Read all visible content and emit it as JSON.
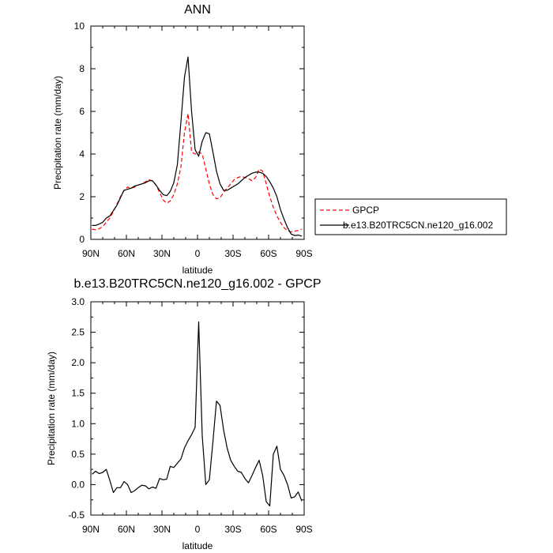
{
  "chart_data": [
    {
      "type": "line",
      "title": "ANN",
      "xlabel": "latitude",
      "ylabel": "Precipitation rate (mm/day)",
      "xlim": [
        90,
        -90
      ],
      "ylim": [
        0,
        10
      ],
      "x_ticks": [
        90,
        60,
        30,
        0,
        -30,
        -60,
        -90
      ],
      "x_tick_labels": [
        "90N",
        "60N",
        "30N",
        "0",
        "30S",
        "60S",
        "90S"
      ],
      "y_ticks": [
        0,
        2,
        4,
        6,
        8,
        10
      ],
      "y_tick_labels": [
        "0",
        "2",
        "4",
        "6",
        "8",
        "10"
      ],
      "grid": false,
      "legend_position": "right",
      "series": [
        {
          "name": "GPCP",
          "color": "#ff0000",
          "dash": "dashed",
          "x": [
            89,
            86,
            83,
            80,
            77,
            74,
            71,
            68,
            65,
            62,
            59,
            56,
            53,
            50,
            47,
            44,
            41,
            38,
            35,
            32,
            29,
            26,
            23,
            20,
            17,
            14,
            11,
            8,
            5,
            2,
            -1,
            -4,
            -7,
            -10,
            -13,
            -16,
            -19,
            -22,
            -25,
            -28,
            -31,
            -34,
            -37,
            -40,
            -43,
            -46,
            -49,
            -52,
            -55,
            -58,
            -61,
            -64,
            -67,
            -70,
            -73,
            -76,
            -79,
            -82,
            -85,
            -88
          ],
          "values": [
            0.48,
            0.45,
            0.5,
            0.6,
            0.8,
            1.0,
            1.3,
            1.65,
            2.0,
            2.3,
            2.45,
            2.4,
            2.45,
            2.55,
            2.6,
            2.7,
            2.8,
            2.75,
            2.55,
            2.2,
            1.85,
            1.7,
            1.8,
            2.1,
            2.6,
            3.4,
            5.0,
            5.9,
            4.1,
            4.0,
            4.1,
            4.0,
            3.3,
            2.6,
            2.1,
            1.9,
            1.95,
            2.2,
            2.4,
            2.6,
            2.8,
            2.9,
            2.95,
            2.9,
            2.85,
            2.75,
            2.9,
            3.3,
            3.2,
            2.6,
            2.0,
            1.5,
            1.1,
            0.8,
            0.55,
            0.4,
            0.35,
            0.38,
            0.42,
            0.48
          ]
        },
        {
          "name": "b.e13.B20TRC5CN.ne120_g16.002",
          "color": "#000000",
          "dash": "solid",
          "x": [
            89,
            86,
            83,
            80,
            77,
            74,
            71,
            68,
            65,
            62,
            59,
            56,
            53,
            50,
            47,
            44,
            41,
            38,
            35,
            32,
            29,
            26,
            23,
            20,
            17,
            14,
            11,
            8,
            5,
            2,
            -1,
            -4,
            -7,
            -10,
            -13,
            -16,
            -19,
            -22,
            -25,
            -28,
            -31,
            -34,
            -37,
            -40,
            -43,
            -46,
            -49,
            -52,
            -55,
            -58,
            -61,
            -64,
            -67,
            -70,
            -73,
            -76,
            -79,
            -82,
            -85,
            -88
          ],
          "values": [
            0.65,
            0.65,
            0.72,
            0.8,
            1.0,
            1.1,
            1.35,
            1.6,
            1.95,
            2.3,
            2.35,
            2.4,
            2.5,
            2.55,
            2.6,
            2.65,
            2.75,
            2.75,
            2.55,
            2.3,
            2.1,
            2.05,
            2.25,
            2.65,
            3.5,
            5.5,
            7.6,
            8.55,
            6.0,
            4.2,
            3.9,
            4.6,
            5.0,
            4.95,
            4.1,
            3.2,
            2.6,
            2.3,
            2.3,
            2.4,
            2.5,
            2.6,
            2.75,
            2.9,
            3.0,
            3.1,
            3.15,
            3.15,
            3.1,
            2.95,
            2.7,
            2.4,
            2.0,
            1.4,
            0.95,
            0.55,
            0.25,
            0.18,
            0.2,
            0.15
          ]
        }
      ]
    },
    {
      "type": "line",
      "title": "b.e13.B20TRC5CN.ne120_g16.002 - GPCP",
      "xlabel": "latitude",
      "ylabel": "Precipitation rate (mm/day)",
      "xlim": [
        90,
        -90
      ],
      "ylim": [
        -0.5,
        3.0
      ],
      "x_ticks": [
        90,
        60,
        30,
        0,
        -30,
        -60,
        -90
      ],
      "x_tick_labels": [
        "90N",
        "60N",
        "30N",
        "0",
        "30S",
        "60S",
        "90S"
      ],
      "y_ticks": [
        -0.5,
        0.0,
        0.5,
        1.0,
        1.5,
        2.0,
        2.5,
        3.0
      ],
      "y_tick_labels": [
        "-0.5",
        "0.0",
        "0.5",
        "1.0",
        "1.5",
        "2.0",
        "2.5",
        "3.0"
      ],
      "grid": false,
      "series": [
        {
          "color": "#000000",
          "dash": "solid",
          "x": [
            89,
            86,
            83,
            80,
            77,
            74,
            71,
            68,
            65,
            62,
            59,
            56,
            53,
            50,
            47,
            44,
            41,
            38,
            35,
            32,
            29,
            26,
            23,
            20,
            17,
            14,
            11,
            8,
            5,
            2,
            -1,
            -4,
            -7,
            -10,
            -13,
            -16,
            -19,
            -22,
            -25,
            -28,
            -31,
            -34,
            -37,
            -40,
            -43,
            -46,
            -49,
            -52,
            -55,
            -58,
            -61,
            -64,
            -67,
            -70,
            -73,
            -76,
            -79,
            -82,
            -85,
            -88
          ],
          "values": [
            0.17,
            0.22,
            0.18,
            0.2,
            0.25,
            0.07,
            -0.13,
            -0.05,
            -0.05,
            0.05,
            0.0,
            -0.13,
            -0.1,
            -0.05,
            -0.01,
            -0.02,
            -0.07,
            -0.04,
            -0.06,
            0.1,
            0.08,
            0.09,
            0.3,
            0.28,
            0.35,
            0.42,
            0.6,
            0.72,
            0.82,
            0.94,
            2.67,
            0.8,
            0.0,
            0.08,
            0.7,
            1.37,
            1.3,
            0.9,
            0.6,
            0.4,
            0.3,
            0.22,
            0.2,
            0.1,
            0.03,
            0.15,
            0.28,
            0.4,
            0.15,
            -0.28,
            -0.35,
            0.5,
            0.63,
            0.25,
            0.15,
            0.0,
            -0.22,
            -0.2,
            -0.12,
            -0.27
          ]
        }
      ]
    }
  ]
}
